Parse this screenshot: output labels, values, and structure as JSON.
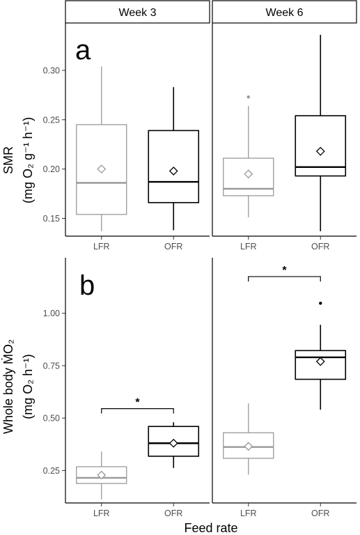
{
  "chart_data": [
    {
      "type": "box",
      "panel_label": "a",
      "ylabel_line1": "SMR",
      "ylabel_line2": "(mg O₂ g⁻¹ h⁻¹)",
      "ylim": [
        0.132,
        0.348
      ],
      "yticks": [
        0.15,
        0.2,
        0.25,
        0.3
      ],
      "ytick_labels": [
        "0.15",
        "0.20",
        "0.25",
        "0.30"
      ],
      "facets": [
        {
          "label": "Week 3",
          "categories": [
            "LFR",
            "OFR"
          ],
          "boxes": [
            {
              "group": "LFR",
              "min": 0.137,
              "q1": 0.154,
              "median": 0.186,
              "q3": 0.245,
              "max": 0.304,
              "mean": 0.2,
              "outliers": []
            },
            {
              "group": "OFR",
              "min": 0.138,
              "q1": 0.166,
              "median": 0.187,
              "q3": 0.239,
              "max": 0.283,
              "mean": 0.198,
              "outliers": []
            }
          ]
        },
        {
          "label": "Week 6",
          "categories": [
            "LFR",
            "OFR"
          ],
          "boxes": [
            {
              "group": "LFR",
              "min": 0.151,
              "q1": 0.173,
              "median": 0.18,
              "q3": 0.211,
              "max": 0.264,
              "mean": 0.195,
              "outliers": [
                0.273
              ]
            },
            {
              "group": "OFR",
              "min": 0.137,
              "q1": 0.193,
              "median": 0.202,
              "q3": 0.254,
              "max": 0.336,
              "mean": 0.218,
              "outliers": []
            }
          ]
        }
      ]
    },
    {
      "type": "box",
      "panel_label": "b",
      "ylabel_line1": "Whole body ṀO₂",
      "ylabel_line2": "(mg O₂ h⁻¹)",
      "ylim": [
        0.095,
        1.265
      ],
      "yticks": [
        0.25,
        0.5,
        0.75,
        1.0
      ],
      "ytick_labels": [
        "0.25",
        "0.50",
        "0.75",
        "1.00"
      ],
      "facets": [
        {
          "label": "Week 3",
          "categories": [
            "LFR",
            "OFR"
          ],
          "boxes": [
            {
              "group": "LFR",
              "min": 0.112,
              "q1": 0.188,
              "median": 0.215,
              "q3": 0.268,
              "max": 0.34,
              "mean": 0.228,
              "outliers": []
            },
            {
              "group": "OFR",
              "min": 0.262,
              "q1": 0.318,
              "median": 0.38,
              "q3": 0.46,
              "max": 0.48,
              "mean": 0.38,
              "outliers": []
            }
          ],
          "significance": {
            "label": "*",
            "y": 0.545
          }
        },
        {
          "label": "Week 6",
          "categories": [
            "LFR",
            "OFR"
          ],
          "boxes": [
            {
              "group": "LFR",
              "min": 0.23,
              "q1": 0.308,
              "median": 0.362,
              "q3": 0.43,
              "max": 0.57,
              "mean": 0.365,
              "outliers": []
            },
            {
              "group": "OFR",
              "min": 0.54,
              "q1": 0.685,
              "median": 0.79,
              "q3": 0.822,
              "max": 0.945,
              "mean": 0.77,
              "outliers": [
                1.048
              ]
            }
          ],
          "significance": {
            "label": "*",
            "y": 1.175
          }
        }
      ]
    }
  ],
  "facet_labels": [
    "Week 3",
    "Week 6"
  ],
  "xlabel": "Feed rate",
  "colors": {
    "LFR": "#999999",
    "OFR": "#000000",
    "tick_text": "#4d4d4d",
    "strip_fill": "#ffffff"
  }
}
